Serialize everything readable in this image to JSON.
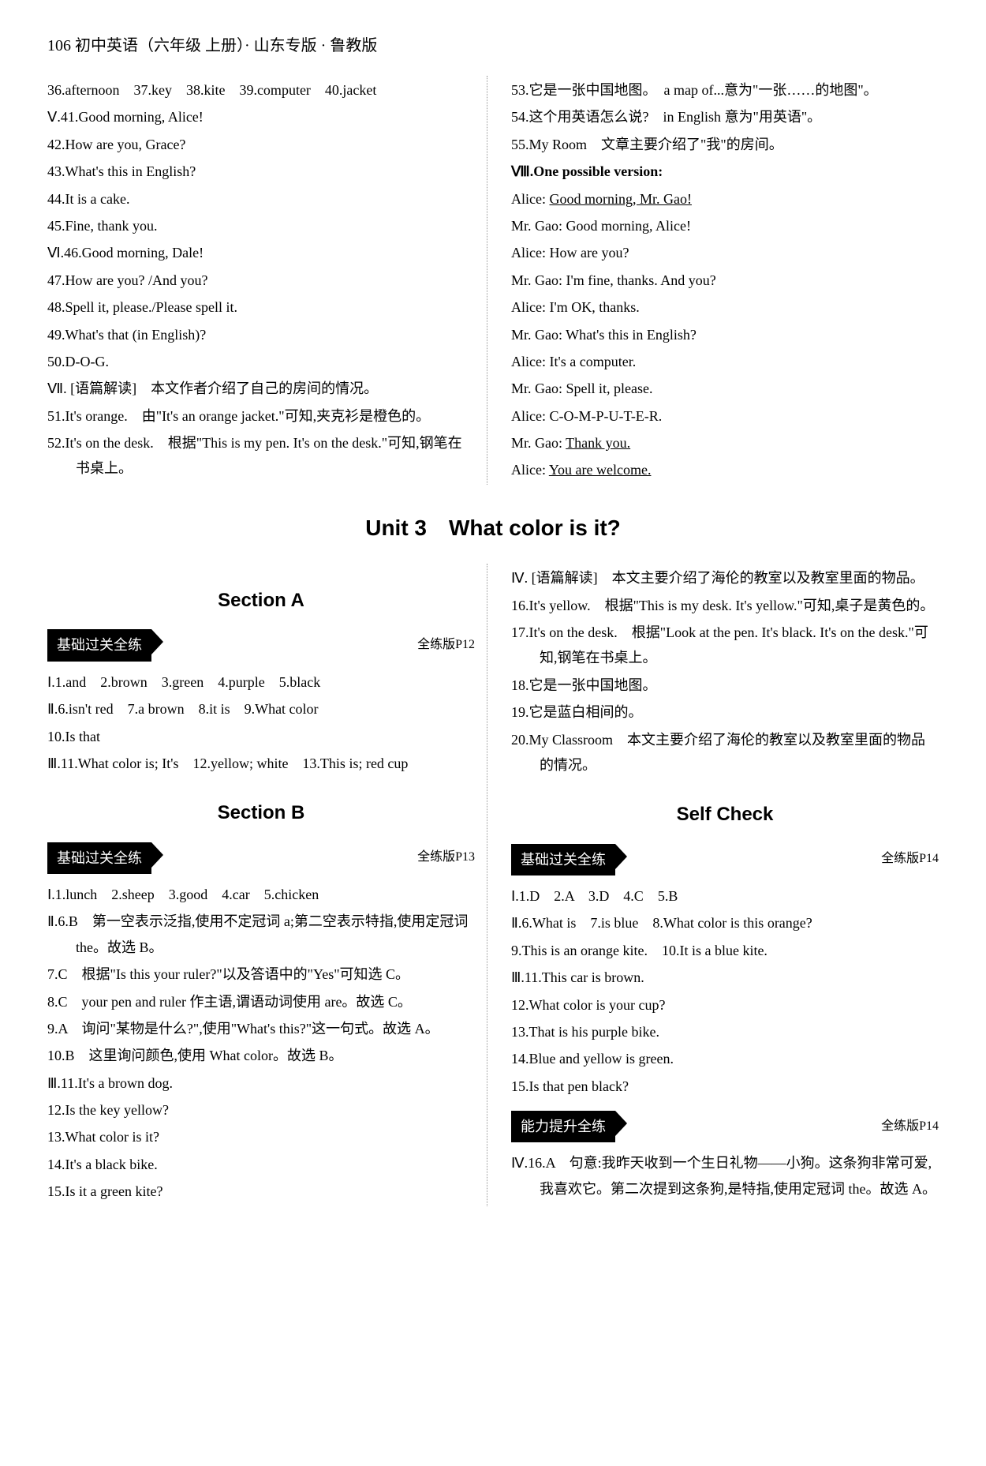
{
  "header": "106 初中英语（六年级 上册）· 山东专版 · 鲁教版",
  "top_left": [
    "36.afternoon　37.key　38.kite　39.computer　40.jacket",
    "Ⅴ.41.Good morning, Alice!",
    "42.How are you, Grace?",
    "43.What's this in English?",
    "44.It is a cake.",
    "45.Fine, thank you.",
    "Ⅵ.46.Good morning, Dale!",
    "47.How are you? /And you?",
    "48.Spell it, please./Please spell it.",
    "49.What's that (in English)?",
    "50.D-O-G.",
    "Ⅶ. [语篇解读]　本文作者介绍了自己的房间的情况。",
    "51.It's orange.　由\"It's an orange jacket.\"可知,夹克衫是橙色的。",
    "52.It's on the desk.　根据\"This is my pen. It's on the desk.\"可知,钢笔在书桌上。"
  ],
  "top_right": [
    "53.它是一张中国地图。　a map of...意为\"一张……的地图\"。",
    "54.这个用英语怎么说?　in English 意为\"用英语\"。",
    "55.My Room　文章主要介绍了\"我\"的房间。",
    "Ⅷ.One possible version:",
    "Alice: Good morning, Mr. Gao!",
    "Mr. Gao: Good morning, Alice!",
    "Alice: How are you?",
    "Mr. Gao: I'm fine, thanks. And you?",
    "Alice: I'm OK, thanks.",
    "Mr. Gao: What's this in English?",
    "Alice: It's a computer.",
    "Mr. Gao: Spell it, please.",
    "Alice: C-O-M-P-U-T-E-R.",
    "Mr. Gao: Thank you.",
    "Alice: You are welcome."
  ],
  "unit_title": "Unit 3　What color is it?",
  "section_a": "Section A",
  "section_b": "Section B",
  "self_check": "Self Check",
  "practice_basic": "基础过关全练",
  "practice_ability": "能力提升全练",
  "page_p12": "全练版P12",
  "page_p13": "全练版P13",
  "page_p14": "全练版P14",
  "section_a_items": [
    "Ⅰ.1.and　2.brown　3.green　4.purple　5.black",
    "Ⅱ.6.isn't red　7.a brown　8.it is　9.What color",
    "10.Is that",
    "Ⅲ.11.What color is; It's　12.yellow; white　13.This is; red cup"
  ],
  "section_b_items": [
    "Ⅰ.1.lunch　2.sheep　3.good　4.car　5.chicken",
    "Ⅱ.6.B　第一空表示泛指,使用不定冠词 a;第二空表示特指,使用定冠词 the。故选 B。",
    "7.C　根据\"Is this your ruler?\"以及答语中的\"Yes\"可知选 C。",
    "8.C　your pen and ruler 作主语,谓语动词使用 are。故选 C。",
    "9.A　询问\"某物是什么?\",使用\"What's this?\"这一句式。故选 A。",
    "10.B　这里询问颜色,使用 What color。故选 B。",
    "Ⅲ.11.It's a brown dog.",
    "12.Is the key yellow?",
    "13.What color is it?",
    "14.It's a black bike.",
    "15.Is it a green kite?"
  ],
  "section_b_right": [
    "Ⅳ. [语篇解读]　本文主要介绍了海伦的教室以及教室里面的物品。",
    "16.It's yellow.　根据\"This is my desk. It's yellow.\"可知,桌子是黄色的。",
    "17.It's on the desk.　根据\"Look at the pen. It's black. It's on the desk.\"可知,钢笔在书桌上。",
    "18.它是一张中国地图。",
    "19.它是蓝白相间的。",
    "20.My Classroom　本文主要介绍了海伦的教室以及教室里面的物品的情况。"
  ],
  "self_check_basic": [
    "Ⅰ.1.D　2.A　3.D　4.C　5.B",
    "Ⅱ.6.What is　7.is blue　8.What color is this orange?",
    "9.This is an orange kite.　10.It is a blue kite.",
    "Ⅲ.11.This car is brown.",
    "12.What color is your cup?",
    "13.That is his purple bike.",
    "14.Blue and yellow is green.",
    "15.Is that pen black?"
  ],
  "self_check_ability": [
    "Ⅳ.16.A　句意:我昨天收到一个生日礼物——小狗。这条狗非常可爱,我喜欢它。第二次提到这条狗,是特指,使用定冠词 the。故选 A。"
  ]
}
